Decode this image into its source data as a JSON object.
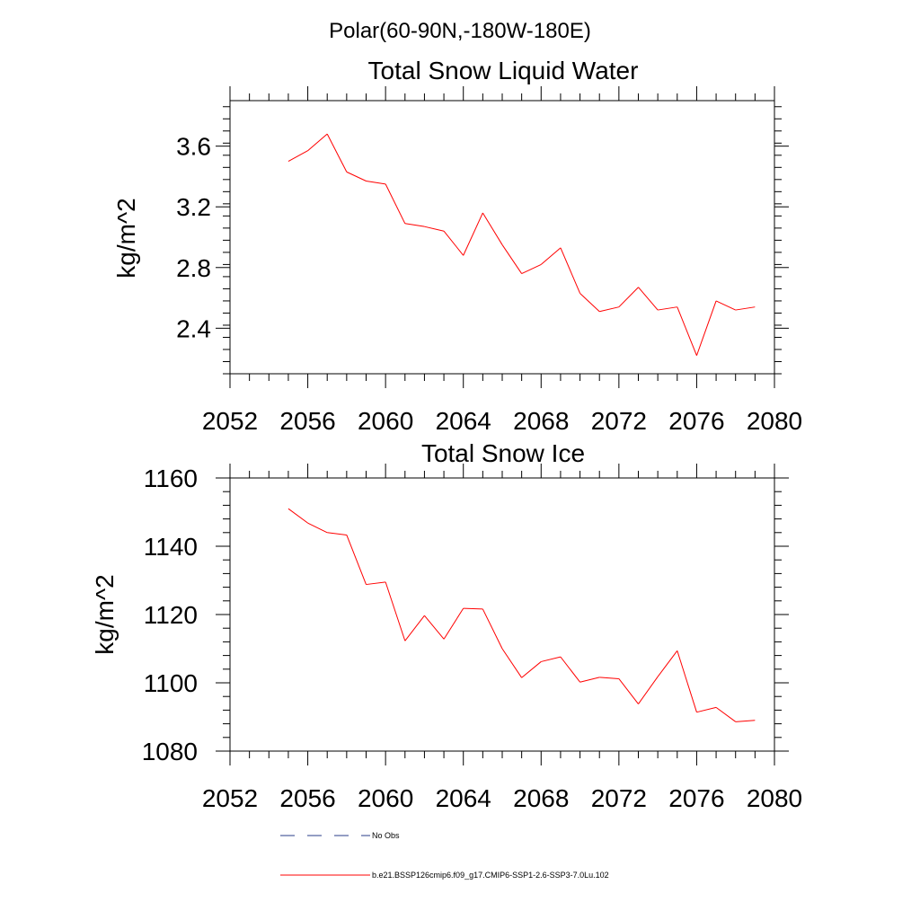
{
  "header": {
    "title": "Polar(60-90N,-180W-180E)"
  },
  "colors": {
    "series": "#ff0000",
    "no_obs": "#2a3c8a",
    "axis": "#000000"
  },
  "chart_data": [
    {
      "type": "line",
      "title": "Total Snow Liquid Water",
      "ylabel": "kg/m^2",
      "xlabel": "",
      "xlim": [
        2052,
        2080
      ],
      "ylim": [
        2.1,
        3.9
      ],
      "xticks": [
        "2052",
        "2056",
        "2060",
        "2064",
        "2068",
        "2072",
        "2076",
        "2080"
      ],
      "yticks": [
        "2.4",
        "2.8",
        "3.2",
        "3.6"
      ],
      "x": [
        2055,
        2056,
        2057,
        2058,
        2059,
        2060,
        2061,
        2062,
        2063,
        2064,
        2065,
        2066,
        2067,
        2068,
        2069,
        2070,
        2071,
        2072,
        2073,
        2074,
        2075,
        2076,
        2077,
        2078,
        2079
      ],
      "series": [
        {
          "values": [
            3.5,
            3.57,
            3.68,
            3.43,
            3.37,
            3.35,
            3.09,
            3.07,
            3.04,
            2.88,
            3.16,
            2.95,
            2.76,
            2.82,
            2.93,
            2.63,
            2.51,
            2.54,
            2.67,
            2.52,
            2.54,
            2.22,
            2.58,
            2.52,
            2.54
          ]
        }
      ]
    },
    {
      "type": "line",
      "title": "Total Snow Ice",
      "ylabel": "kg/m^2",
      "xlabel": "",
      "xlim": [
        2052,
        2080
      ],
      "ylim": [
        1080,
        1160
      ],
      "xticks": [
        "2052",
        "2056",
        "2060",
        "2064",
        "2068",
        "2072",
        "2076",
        "2080"
      ],
      "yticks": [
        "1080",
        "1100",
        "1120",
        "1140",
        "1160"
      ],
      "x": [
        2055,
        2056,
        2057,
        2058,
        2059,
        2060,
        2061,
        2062,
        2063,
        2064,
        2065,
        2066,
        2067,
        2068,
        2069,
        2070,
        2071,
        2072,
        2073,
        2074,
        2075,
        2076,
        2077,
        2078,
        2079
      ],
      "series": [
        {
          "values": [
            1151.0,
            1146.8,
            1144.0,
            1143.3,
            1128.8,
            1129.5,
            1112.3,
            1119.7,
            1112.8,
            1121.8,
            1121.6,
            1110.0,
            1101.5,
            1106.2,
            1107.6,
            1100.2,
            1101.6,
            1101.2,
            1093.8,
            1101.8,
            1109.4,
            1091.4,
            1092.8,
            1088.6,
            1089.0
          ]
        }
      ]
    }
  ],
  "legend": {
    "no_obs_label": "No Obs",
    "series_label": "b.e21.BSSP126cmip6.f09_g17.CMIP6-SSP1-2.6-SSP3-7.0Lu.102"
  }
}
